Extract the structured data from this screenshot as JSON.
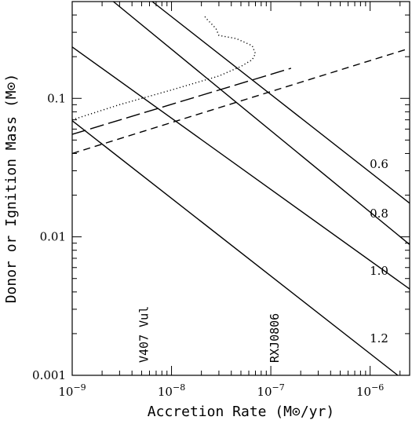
{
  "chart_data": {
    "type": "line",
    "xlabel": "Accretion Rate (M⊙/yr)",
    "ylabel": "Donor or Ignition Mass (M⊙)",
    "xscale": "log",
    "yscale": "log",
    "xlim": [
      1e-09,
      2.5e-06
    ],
    "ylim": [
      0.001,
      0.5
    ],
    "xticks": [
      {
        "value": 1e-09,
        "base": "10",
        "exp": "−9"
      },
      {
        "value": 1e-08,
        "base": "10",
        "exp": "−8"
      },
      {
        "value": 1e-07,
        "base": "10",
        "exp": "−7"
      },
      {
        "value": 1e-06,
        "base": "10",
        "exp": "−6"
      }
    ],
    "yticks": [
      {
        "value": 0.001,
        "label": "0.001"
      },
      {
        "value": 0.01,
        "label": "0.01"
      },
      {
        "value": 0.1,
        "label": "0.1"
      }
    ],
    "grid": false,
    "series": [
      {
        "label": "0.6",
        "style": "solid",
        "points": [
          [
            6.4e-09,
            0.5
          ],
          [
            2.5e-06,
            0.0175
          ]
        ]
      },
      {
        "label": "0.8",
        "style": "solid",
        "points": [
          [
            2.6e-09,
            0.5
          ],
          [
            2.5e-06,
            0.0088
          ]
        ]
      },
      {
        "label": "1.0",
        "style": "solid",
        "points": [
          [
            1e-09,
            0.235
          ],
          [
            2.5e-06,
            0.0042
          ]
        ]
      },
      {
        "label": "1.2",
        "style": "solid",
        "points": [
          [
            1e-09,
            0.069
          ],
          [
            1.9e-06,
            0.001
          ]
        ]
      },
      {
        "style": "dotted",
        "points": [
          [
            1e-09,
            0.07
          ],
          [
            3e-09,
            0.09
          ],
          [
            1e-08,
            0.115
          ],
          [
            3e-08,
            0.145
          ],
          [
            5e-08,
            0.17
          ],
          [
            6.5e-08,
            0.19
          ],
          [
            7e-08,
            0.21
          ],
          [
            6.5e-08,
            0.24
          ],
          [
            4.5e-08,
            0.27
          ],
          [
            3e-08,
            0.285
          ],
          [
            2.8e-08,
            0.32
          ],
          [
            2.3e-08,
            0.37
          ],
          [
            2.1e-08,
            0.4
          ]
        ]
      },
      {
        "style": "long-dashed",
        "points": [
          [
            1e-09,
            0.055
          ],
          [
            1.6e-07,
            0.165
          ]
        ]
      },
      {
        "style": "short-dashed",
        "points": [
          [
            1e-09,
            0.04
          ],
          [
            2.5e-06,
            0.23
          ]
        ]
      }
    ],
    "annotations": [
      {
        "text": "V407 Vul",
        "x": 5.8e-09
      },
      {
        "text": "RXJ0806",
        "x": 1.2e-07
      }
    ]
  }
}
